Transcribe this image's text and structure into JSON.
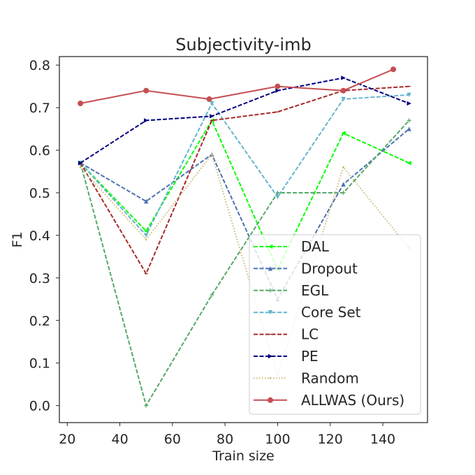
{
  "chart_data": {
    "type": "line",
    "title": "Subjectivity-imb",
    "xlabel": "Train size",
    "ylabel": "F1",
    "xlim": [
      17,
      157
    ],
    "ylim": [
      -0.04,
      0.82
    ],
    "xticks": [
      20,
      40,
      60,
      80,
      100,
      120,
      140
    ],
    "xtick_labels": [
      "20",
      "40",
      "60",
      "80",
      "100",
      "120",
      "140"
    ],
    "yticks": [
      0.0,
      0.1,
      0.2,
      0.3,
      0.4,
      0.5,
      0.6,
      0.7,
      0.8
    ],
    "ytick_labels": [
      "0.0",
      "0.1",
      "0.2",
      "0.3",
      "0.4",
      "0.5",
      "0.6",
      "0.7",
      "0.8"
    ],
    "grid": false,
    "legend_position": "lower-right",
    "series": [
      {
        "name": "DAL",
        "color": "#00ff00",
        "dash": "dashed",
        "marker": "tri-left",
        "x": [
          25,
          50,
          75,
          100,
          125,
          150
        ],
        "y": [
          0.57,
          0.41,
          0.67,
          0.32,
          0.64,
          0.57
        ]
      },
      {
        "name": "Dropout",
        "color": "#4c72b0",
        "dash": "dashed",
        "marker": "tri-up",
        "x": [
          25,
          50,
          75,
          100,
          125,
          150
        ],
        "y": [
          0.57,
          0.48,
          0.59,
          0.25,
          0.52,
          0.65
        ]
      },
      {
        "name": "EGL",
        "color": "#55a868",
        "dash": "dashed",
        "marker": "plus",
        "x": [
          25,
          50,
          75,
          100,
          125,
          150
        ],
        "y": [
          0.57,
          0.0,
          0.26,
          0.5,
          0.5,
          0.67
        ]
      },
      {
        "name": "Core Set",
        "color": "#64b5cd",
        "dash": "dashed",
        "marker": "tri-down",
        "x": [
          25,
          50,
          75,
          100,
          125,
          150
        ],
        "y": [
          0.57,
          0.4,
          0.71,
          0.49,
          0.72,
          0.73
        ]
      },
      {
        "name": "LC",
        "color": "#a52a2a",
        "dash": "dashed",
        "marker": "hline",
        "x": [
          25,
          50,
          75,
          100,
          125,
          150
        ],
        "y": [
          0.57,
          0.31,
          0.67,
          0.69,
          0.74,
          0.75
        ]
      },
      {
        "name": "PE",
        "color": "#000080",
        "dash": "dashed",
        "marker": "tri-right",
        "x": [
          25,
          50,
          75,
          100,
          125,
          150
        ],
        "y": [
          0.57,
          0.67,
          0.68,
          0.74,
          0.77,
          0.71
        ]
      },
      {
        "name": "Random",
        "color": "#ccb974",
        "dash": "dotted",
        "marker": "dot",
        "x": [
          25,
          50,
          75,
          100,
          125,
          150
        ],
        "y": [
          0.56,
          0.39,
          0.59,
          0.07,
          0.56,
          0.37
        ]
      },
      {
        "name": "ALLWAS (Ours)",
        "color": "#c44e52",
        "dash": "solid",
        "marker": "circle",
        "x": [
          25,
          50,
          74,
          100,
          125,
          144
        ],
        "y": [
          0.71,
          0.74,
          0.72,
          0.75,
          0.74,
          0.79
        ]
      }
    ]
  }
}
